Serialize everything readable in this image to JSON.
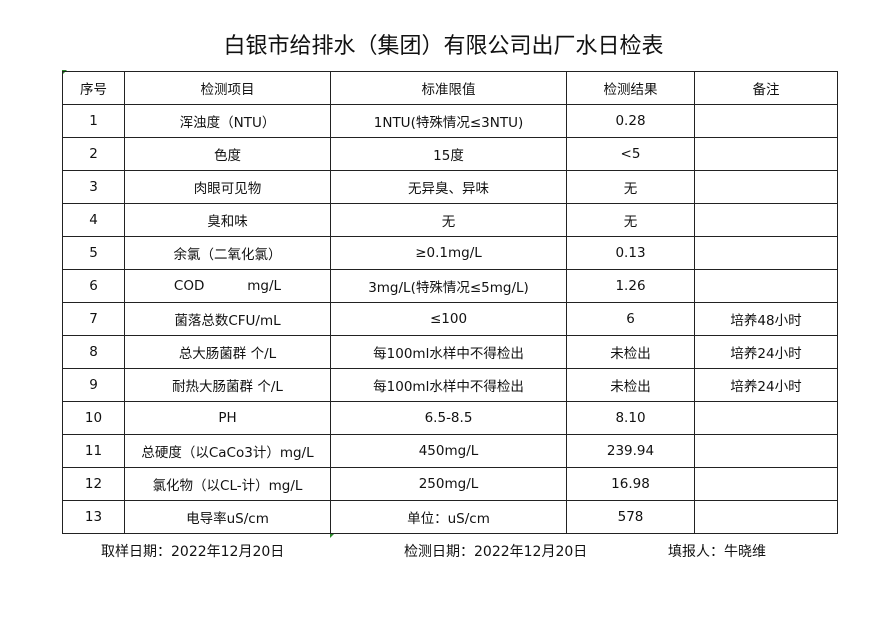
{
  "title": "白银市给排水（集团）有限公司出厂水日检表",
  "headers": [
    "序号",
    "检测项目",
    "标准限值",
    "检测结果",
    "备注"
  ],
  "rows": [
    [
      "1",
      "浑浊度（NTU）",
      "1NTU(特殊情况≤3NTU)",
      "0.28",
      ""
    ],
    [
      "2",
      "色度",
      "15度",
      "<5",
      ""
    ],
    [
      "3",
      "肉眼可见物",
      "无异臭、异味",
      "无",
      ""
    ],
    [
      "4",
      "臭和味",
      "无",
      "无",
      ""
    ],
    [
      "5",
      "余氯（二氧化氯）",
      "≥0.1mg/L",
      "0.13",
      ""
    ],
    [
      "6",
      "COD          mg/L",
      "3mg/L(特殊情况≤5mg/L)",
      "1.26",
      ""
    ],
    [
      "7",
      "菌落总数CFU/mL",
      "≤100",
      "6",
      "培养48小时"
    ],
    [
      "8",
      "总大肠菌群 个/L",
      "每100ml水样中不得检出",
      "未检出",
      "培养24小时"
    ],
    [
      "9",
      "耐热大肠菌群 个/L",
      "每100ml水样中不得检出",
      "未检出",
      "培养24小时"
    ],
    [
      "10",
      "PH",
      "6.5-8.5",
      "8.10",
      ""
    ],
    [
      "11",
      "总硬度（以CaCo3计）mg/L",
      "450mg/L",
      "239.94",
      ""
    ],
    [
      "12",
      "氯化物（以CL-计）mg/L",
      "250mg/L",
      "16.98",
      ""
    ],
    [
      "13",
      "电导率uS/cm",
      "单位：uS/cm",
      "578",
      ""
    ]
  ],
  "footer": {
    "sampling_date": "取样日期：2022年12月20日",
    "test_date": "检测日期：2022年12月20日",
    "reporter": "填报人：牛晓维"
  }
}
